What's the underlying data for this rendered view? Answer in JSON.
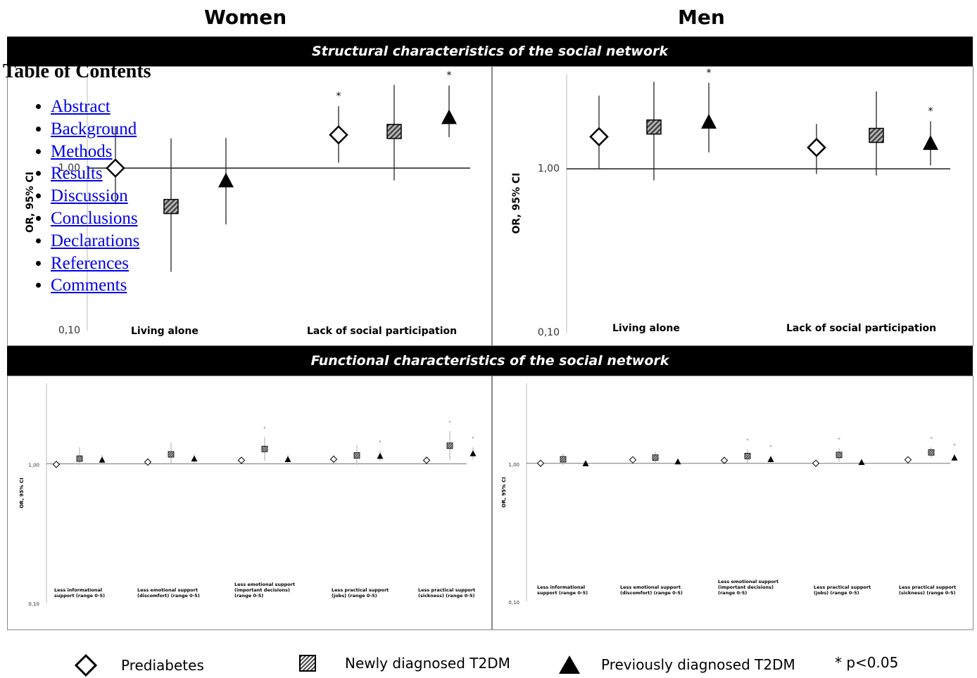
{
  "columns": {
    "women": "Women",
    "men": "Men"
  },
  "sections": {
    "structural": "Structural characteristics of the social network",
    "functional": "Functional characteristics of the social network"
  },
  "toc": {
    "title": "Table of Contents",
    "items": [
      "Abstract",
      "Background",
      "Methods",
      "Results",
      "Discussion",
      "Conclusions",
      "Declarations",
      "References",
      "Comments"
    ]
  },
  "legend": {
    "prediabetes": "Prediabetes",
    "newly": "Newly diagnosed T2DM",
    "previously": "Previously diagnosed T2DM",
    "sig": "* p<0.05"
  },
  "colors": {
    "band": "#000000",
    "square_fill": "#888888",
    "ci_line": "#000000",
    "ci_line_small": "#bbbbbb"
  },
  "chart_data": [
    {
      "type": "scatter",
      "panel": "Women - structural",
      "ylabel": "OR, 95% CI",
      "yscale": "log",
      "ylim": [
        0.1,
        3.8
      ],
      "yticks": [
        "0,10",
        "1,00"
      ],
      "categories": [
        "Living alone",
        "Lack of social participation"
      ],
      "series": [
        {
          "name": "Prediabetes",
          "values": [
            1.0,
            1.6
          ],
          "ci_low": [
            0.6,
            1.08
          ],
          "ci_high": [
            1.8,
            2.4
          ],
          "sig": [
            false,
            true
          ]
        },
        {
          "name": "Newly diagnosed T2DM",
          "values": [
            0.58,
            1.68
          ],
          "ci_low": [
            0.23,
            0.84
          ],
          "ci_high": [
            1.52,
            3.25
          ],
          "sig": [
            false,
            false
          ]
        },
        {
          "name": "Previously diagnosed T2DM",
          "values": [
            0.84,
            2.06
          ],
          "ci_low": [
            0.45,
            1.55
          ],
          "ci_high": [
            1.53,
            3.22
          ],
          "sig": [
            false,
            true
          ]
        }
      ]
    },
    {
      "type": "scatter",
      "panel": "Men - structural",
      "ylabel": "OR, 95% CI",
      "yscale": "log",
      "ylim": [
        0.1,
        3.8
      ],
      "yticks": [
        "0,10",
        "1,00"
      ],
      "categories": [
        "Living alone",
        "Lack of social participation"
      ],
      "series": [
        {
          "name": "Prediabetes",
          "values": [
            1.57,
            1.35
          ],
          "ci_low": [
            1.0,
            0.93
          ],
          "ci_high": [
            2.8,
            1.88
          ],
          "sig": [
            false,
            false
          ]
        },
        {
          "name": "Newly diagnosed T2DM",
          "values": [
            1.8,
            1.6
          ],
          "ci_low": [
            0.85,
            0.91
          ],
          "ci_high": [
            3.4,
            2.97
          ],
          "sig": [
            false,
            false
          ]
        },
        {
          "name": "Previously diagnosed T2DM",
          "values": [
            1.94,
            1.44
          ],
          "ci_low": [
            1.26,
            1.05
          ],
          "ci_high": [
            3.35,
            1.95
          ],
          "sig": [
            true,
            true
          ]
        }
      ]
    },
    {
      "type": "scatter",
      "panel": "Women - functional",
      "ylabel": "OR, 95% CI",
      "yscale": "log",
      "ylim": [
        0.1,
        3.8
      ],
      "yticks": [
        "0,10",
        "1,00"
      ],
      "categories": [
        "Less informational support (range 0-5)",
        "Less emotional support (discomfort) (range 0-5)",
        "Less emotional support (important decisions) (range 0-5)",
        "Less practical support (jobs) (range 0-5)",
        "Less practical support (sickness) (range 0-5)"
      ],
      "series": [
        {
          "name": "Prediabetes",
          "values": [
            0.99,
            1.03,
            1.06,
            1.08,
            1.06
          ],
          "ci_low": [
            0.94,
            0.96,
            1.0,
            1.01,
            0.99
          ],
          "ci_high": [
            1.04,
            1.1,
            1.12,
            1.15,
            1.13
          ],
          "sig": [
            false,
            false,
            false,
            false,
            false
          ]
        },
        {
          "name": "Newly diagnosed T2DM",
          "values": [
            1.09,
            1.17,
            1.28,
            1.15,
            1.35
          ],
          "ci_low": [
            0.98,
            1.0,
            1.05,
            0.98,
            1.06
          ],
          "ci_high": [
            1.32,
            1.43,
            1.56,
            1.37,
            1.72
          ],
          "sig": [
            false,
            false,
            true,
            false,
            true
          ]
        },
        {
          "name": "Previously diagnosed T2DM",
          "values": [
            1.07,
            1.09,
            1.08,
            1.14,
            1.19
          ],
          "ci_low": [
            1.0,
            1.01,
            1.01,
            1.04,
            1.08
          ],
          "ci_high": [
            1.16,
            1.17,
            1.16,
            1.24,
            1.32
          ],
          "sig": [
            false,
            false,
            false,
            true,
            true
          ]
        }
      ]
    },
    {
      "type": "scatter",
      "panel": "Men - functional",
      "ylabel": "OR, 95% CI",
      "yscale": "log",
      "ylim": [
        0.1,
        3.8
      ],
      "yticks": [
        "0,10",
        "1,00"
      ],
      "categories": [
        "Less informational support (range 0-5)",
        "Less emotional support (discomfort) (range 0-5)",
        "Less emotional support (important decisions) (range 0-5)",
        "Less practical support (jobs) (range 0-5)",
        "Less practical support (sickness) (range 0-5)"
      ],
      "series": [
        {
          "name": "Prediabetes",
          "values": [
            1.0,
            1.06,
            1.05,
            1.0,
            1.06
          ],
          "ci_low": [
            0.95,
            1.0,
            1.0,
            0.95,
            1.0
          ],
          "ci_high": [
            1.05,
            1.12,
            1.1,
            1.06,
            1.12
          ],
          "sig": [
            false,
            false,
            false,
            false,
            false
          ]
        },
        {
          "name": "Newly diagnosed T2DM",
          "values": [
            1.07,
            1.1,
            1.13,
            1.15,
            1.2
          ],
          "ci_low": [
            0.97,
            1.0,
            1.01,
            1.03,
            1.1
          ],
          "ci_high": [
            1.18,
            1.22,
            1.27,
            1.29,
            1.31
          ],
          "sig": [
            false,
            false,
            true,
            true,
            true
          ]
        },
        {
          "name": "Previously diagnosed T2DM",
          "values": [
            1.0,
            1.03,
            1.07,
            1.02,
            1.1
          ],
          "ci_low": [
            0.97,
            0.99,
            1.01,
            0.98,
            1.04
          ],
          "ci_high": [
            1.04,
            1.07,
            1.14,
            1.06,
            1.17
          ],
          "sig": [
            false,
            false,
            true,
            false,
            true
          ]
        }
      ]
    }
  ]
}
